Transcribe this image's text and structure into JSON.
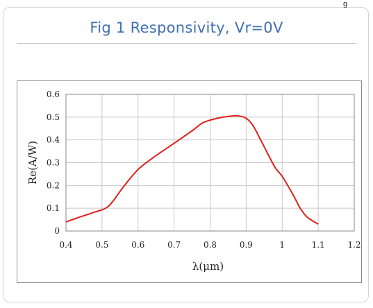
{
  "corner_label": "g",
  "chart_data": {
    "type": "line",
    "title": "Fig 1  Responsivity, Vr=0V",
    "xlabel": "λ(μm)",
    "ylabel": "Re(A/W)",
    "xlim": [
      0.4,
      1.2
    ],
    "ylim": [
      0,
      0.6
    ],
    "x_ticks": [
      "0.4",
      "0.5",
      "0.6",
      "0.7",
      "0.8",
      "0.9",
      "1",
      "1.1",
      "1.2"
    ],
    "y_ticks": [
      "0",
      "0.1",
      "0.2",
      "0.3",
      "0.4",
      "0.5",
      "0.6"
    ],
    "grid": true,
    "series": [
      {
        "color": "#e0201b",
        "x": [
          0.4,
          0.44,
          0.48,
          0.51,
          0.53,
          0.56,
          0.6,
          0.64,
          0.7,
          0.75,
          0.78,
          0.82,
          0.86,
          0.88,
          0.9,
          0.92,
          0.95,
          0.98,
          1.0,
          1.03,
          1.05,
          1.07,
          1.1
        ],
        "y": [
          0.04,
          0.062,
          0.083,
          0.1,
          0.13,
          0.195,
          0.27,
          0.32,
          0.385,
          0.44,
          0.475,
          0.495,
          0.505,
          0.505,
          0.495,
          0.46,
          0.37,
          0.28,
          0.24,
          0.16,
          0.1,
          0.06,
          0.03
        ]
      }
    ]
  }
}
